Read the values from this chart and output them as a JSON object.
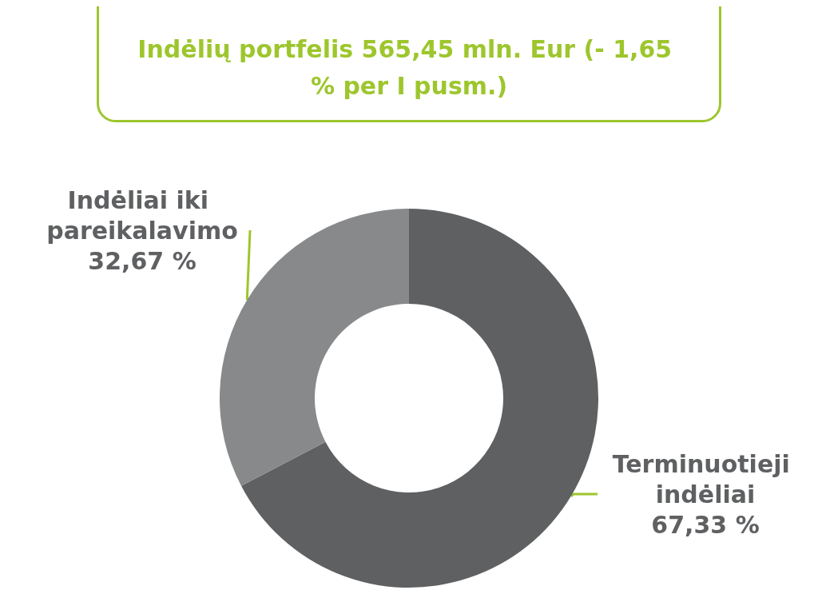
{
  "chart_data": {
    "type": "donut",
    "title": "Indėlių portfelis 565,45 mln. Eur (- 1,65 % per I pusm.)",
    "categories": [
      "Terminuotieji indėliai",
      "Indėliai iki pareikalavimo"
    ],
    "values": [
      67.33,
      32.67
    ],
    "colors": [
      "#5f6062",
      "#88898b"
    ],
    "value_labels": [
      "67,33 %",
      "32,67 %"
    ],
    "legend": false
  }
}
